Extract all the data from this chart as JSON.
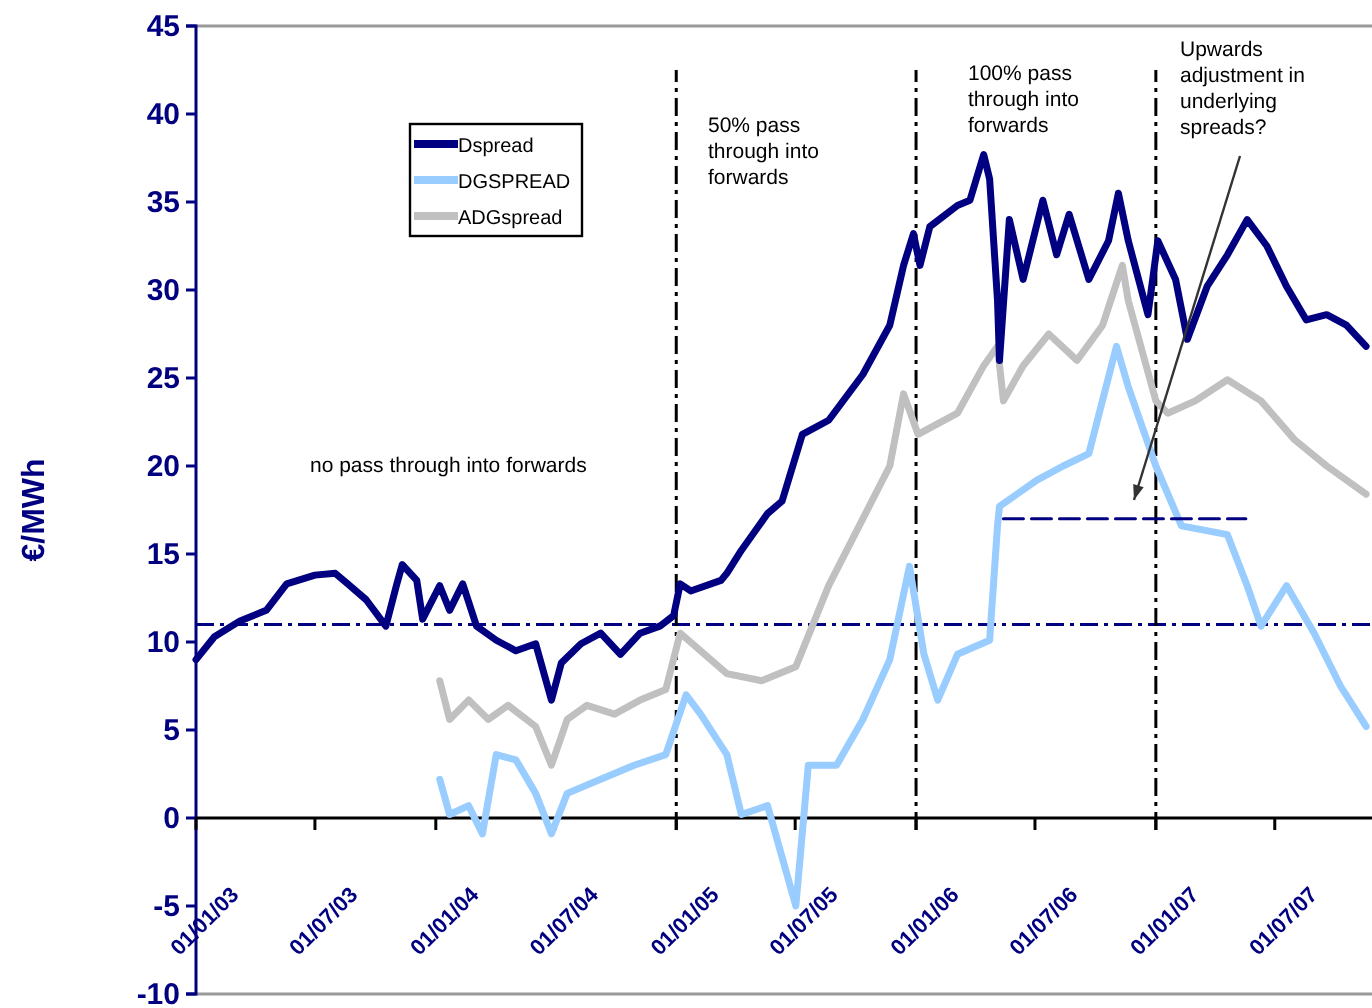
{
  "chart_data": {
    "type": "line",
    "ylabel": "€/MWh",
    "xlim": [
      "2003-01-01",
      "2007-11-26"
    ],
    "ylim": [
      -10,
      45
    ],
    "yticks": [
      -10,
      -5,
      0,
      5,
      10,
      15,
      20,
      25,
      30,
      35,
      40,
      45
    ],
    "xticks": [
      {
        "value": "2003-01-01",
        "label": "01/01/03"
      },
      {
        "value": "2003-07-01",
        "label": "01/07/03"
      },
      {
        "value": "2004-01-01",
        "label": "01/01/04"
      },
      {
        "value": "2004-07-01",
        "label": "01/07/04"
      },
      {
        "value": "2005-01-01",
        "label": "01/01/05"
      },
      {
        "value": "2005-07-01",
        "label": "01/07/05"
      },
      {
        "value": "2006-01-01",
        "label": "01/01/06"
      },
      {
        "value": "2006-07-01",
        "label": "01/07/06"
      },
      {
        "value": "2007-01-01",
        "label": "01/01/07"
      },
      {
        "value": "2007-07-01",
        "label": "01/07/07"
      }
    ],
    "legend": "top left",
    "grid": false,
    "series": [
      {
        "name": "Dspread",
        "color": "#000080",
        "x": [
          "2003-01-01",
          "2003-01-29",
          "2003-03-09",
          "2003-04-18",
          "2003-05-19",
          "2003-07-01",
          "2003-08-01",
          "2003-08-20",
          "2003-09-17",
          "2003-10-17",
          "2003-11-02",
          "2003-11-11",
          "2003-12-03",
          "2003-12-12",
          "2004-01-07",
          "2004-01-22",
          "2004-02-11",
          "2004-03-03",
          "2004-04-02",
          "2004-05-02",
          "2004-06-01",
          "2004-06-25",
          "2004-07-10",
          "2004-08-09",
          "2004-09-08",
          "2004-10-08",
          "2004-11-07",
          "2004-12-07",
          "2004-12-28",
          "2005-01-07",
          "2005-01-23",
          "2005-03-10",
          "2005-03-19",
          "2005-04-10",
          "2005-05-20",
          "2005-06-11",
          "2005-07-12",
          "2005-08-21",
          "2005-10-12",
          "2005-11-22",
          "2005-12-13",
          "2005-12-28",
          "2006-01-07",
          "2006-01-22",
          "2006-03-05",
          "2006-03-24",
          "2006-04-14",
          "2006-04-23",
          "2006-05-05",
          "2006-05-08",
          "2006-05-23",
          "2006-06-13",
          "2006-07-13",
          "2006-08-03",
          "2006-08-22",
          "2006-09-21",
          "2006-10-21",
          "2006-11-05",
          "2006-11-20",
          "2006-12-20",
          "2007-01-04",
          "2007-01-31",
          "2007-02-18",
          "2007-03-20",
          "2007-04-20",
          "2007-05-20",
          "2007-06-19",
          "2007-07-19",
          "2007-08-18",
          "2007-09-18",
          "2007-10-18",
          "2007-11-17"
        ],
        "values": [
          9.0,
          10.3,
          11.2,
          11.8,
          13.3,
          13.8,
          13.9,
          13.3,
          12.4,
          10.9,
          13.2,
          14.4,
          13.5,
          11.3,
          13.2,
          11.8,
          13.3,
          10.9,
          10.1,
          9.5,
          9.9,
          6.7,
          8.8,
          9.9,
          10.5,
          9.3,
          10.5,
          10.9,
          11.5,
          13.3,
          12.9,
          13.5,
          13.9,
          15.2,
          17.3,
          18,
          21.8,
          22.6,
          25.2,
          28,
          31.4,
          33.2,
          31.4,
          33.6,
          34.8,
          35.1,
          37.7,
          36.3,
          29.4,
          26,
          34,
          30.6,
          35.1,
          32,
          34.3,
          30.6,
          32.8,
          35.5,
          32.8,
          28.6,
          32.8,
          30.6,
          27.2,
          30.2,
          32,
          34,
          32.5,
          30.2,
          28.3,
          28.6,
          28,
          26.8
        ]
      },
      {
        "name": "DGSPREAD",
        "color": "#99ccff",
        "x": [
          "2004-01-07",
          "2004-01-22",
          "2004-02-20",
          "2004-03-12",
          "2004-04-02",
          "2004-05-02",
          "2004-06-01",
          "2004-06-25",
          "2004-07-19",
          "2004-09-08",
          "2004-10-29",
          "2004-12-16",
          "2005-01-16",
          "2005-02-07",
          "2005-03-19",
          "2005-04-10",
          "2005-05-20",
          "2005-07-02",
          "2005-07-21",
          "2005-09-02",
          "2005-10-12",
          "2005-11-22",
          "2005-12-22",
          "2006-01-13",
          "2006-02-03",
          "2006-03-05",
          "2006-04-23",
          "2006-05-05",
          "2006-05-08",
          "2006-07-04",
          "2006-08-13",
          "2006-09-21",
          "2006-11-02",
          "2006-11-20",
          "2007-01-01",
          "2007-02-09",
          "2007-04-20",
          "2007-05-20",
          "2007-06-10",
          "2007-07-19",
          "2007-08-30",
          "2007-10-09",
          "2007-11-17"
        ],
        "values": [
          2.2,
          0.2,
          0.7,
          -0.9,
          3.6,
          3.3,
          1.4,
          -0.9,
          1.4,
          2.2,
          3.0,
          3.6,
          7.0,
          5.9,
          3.6,
          0.2,
          0.7,
          -5,
          3.0,
          3.0,
          5.6,
          9.0,
          14.3,
          9.3,
          6.7,
          9.3,
          10.1,
          16.6,
          17.7,
          19.2,
          20,
          20.7,
          26.8,
          24.5,
          20,
          16.6,
          16.1,
          13.2,
          10.9,
          13.2,
          10.5,
          7.5,
          5.2
        ]
      },
      {
        "name": "ADGspread",
        "color": "#c0c0c0",
        "x": [
          "2004-01-07",
          "2004-01-22",
          "2004-02-20",
          "2004-03-21",
          "2004-04-20",
          "2004-06-01",
          "2004-06-25",
          "2004-07-19",
          "2004-08-18",
          "2004-09-29",
          "2004-11-07",
          "2004-12-16",
          "2005-01-07",
          "2005-03-19",
          "2005-05-11",
          "2005-07-02",
          "2005-08-21",
          "2005-11-22",
          "2005-12-13",
          "2006-01-04",
          "2006-03-05",
          "2006-04-14",
          "2006-05-05",
          "2006-05-14",
          "2006-06-13",
          "2006-07-22",
          "2006-09-03",
          "2006-10-12",
          "2006-11-11",
          "2006-11-20",
          "2007-01-01",
          "2007-01-19",
          "2007-03-02",
          "2007-04-20",
          "2007-06-10",
          "2007-07-31",
          "2007-09-18",
          "2007-11-17"
        ],
        "values": [
          7.8,
          5.6,
          6.7,
          5.6,
          6.4,
          5.2,
          3.0,
          5.6,
          6.4,
          5.9,
          6.7,
          7.3,
          10.5,
          8.2,
          7.8,
          8.6,
          13.2,
          20,
          24.1,
          21.8,
          23,
          25.7,
          26.8,
          23.7,
          25.7,
          27.5,
          26,
          28,
          31.4,
          29.4,
          23.7,
          23,
          23.7,
          24.9,
          23.7,
          21.5,
          20,
          18.4
        ]
      },
      {
        "type": "line",
        "color": "#000080",
        "line_style": "dashed",
        "x": [
          "2006-05-14",
          "2007-05-18"
        ],
        "values": [
          17,
          17
        ]
      }
    ],
    "ref_lines": [
      {
        "axis": "y",
        "value": 0,
        "color": "#000000",
        "line_style": "solid"
      },
      {
        "axis": "y",
        "value": 11,
        "color": "#000080",
        "line_style": "dashed"
      },
      {
        "axis": "x",
        "value": "2005-01-01",
        "color": "#000000",
        "line_style": "dashed"
      },
      {
        "axis": "x",
        "value": "2006-01-01",
        "color": "#000000",
        "line_style": "dashed"
      },
      {
        "axis": "x",
        "value": "2007-01-01",
        "color": "#000000",
        "line_style": "dashed"
      }
    ],
    "annotations": [
      "no pass through into forwards",
      "50% pass through into forwards",
      "100% pass through into forwards",
      "Upwards adjustment in underlying spreads?"
    ]
  }
}
